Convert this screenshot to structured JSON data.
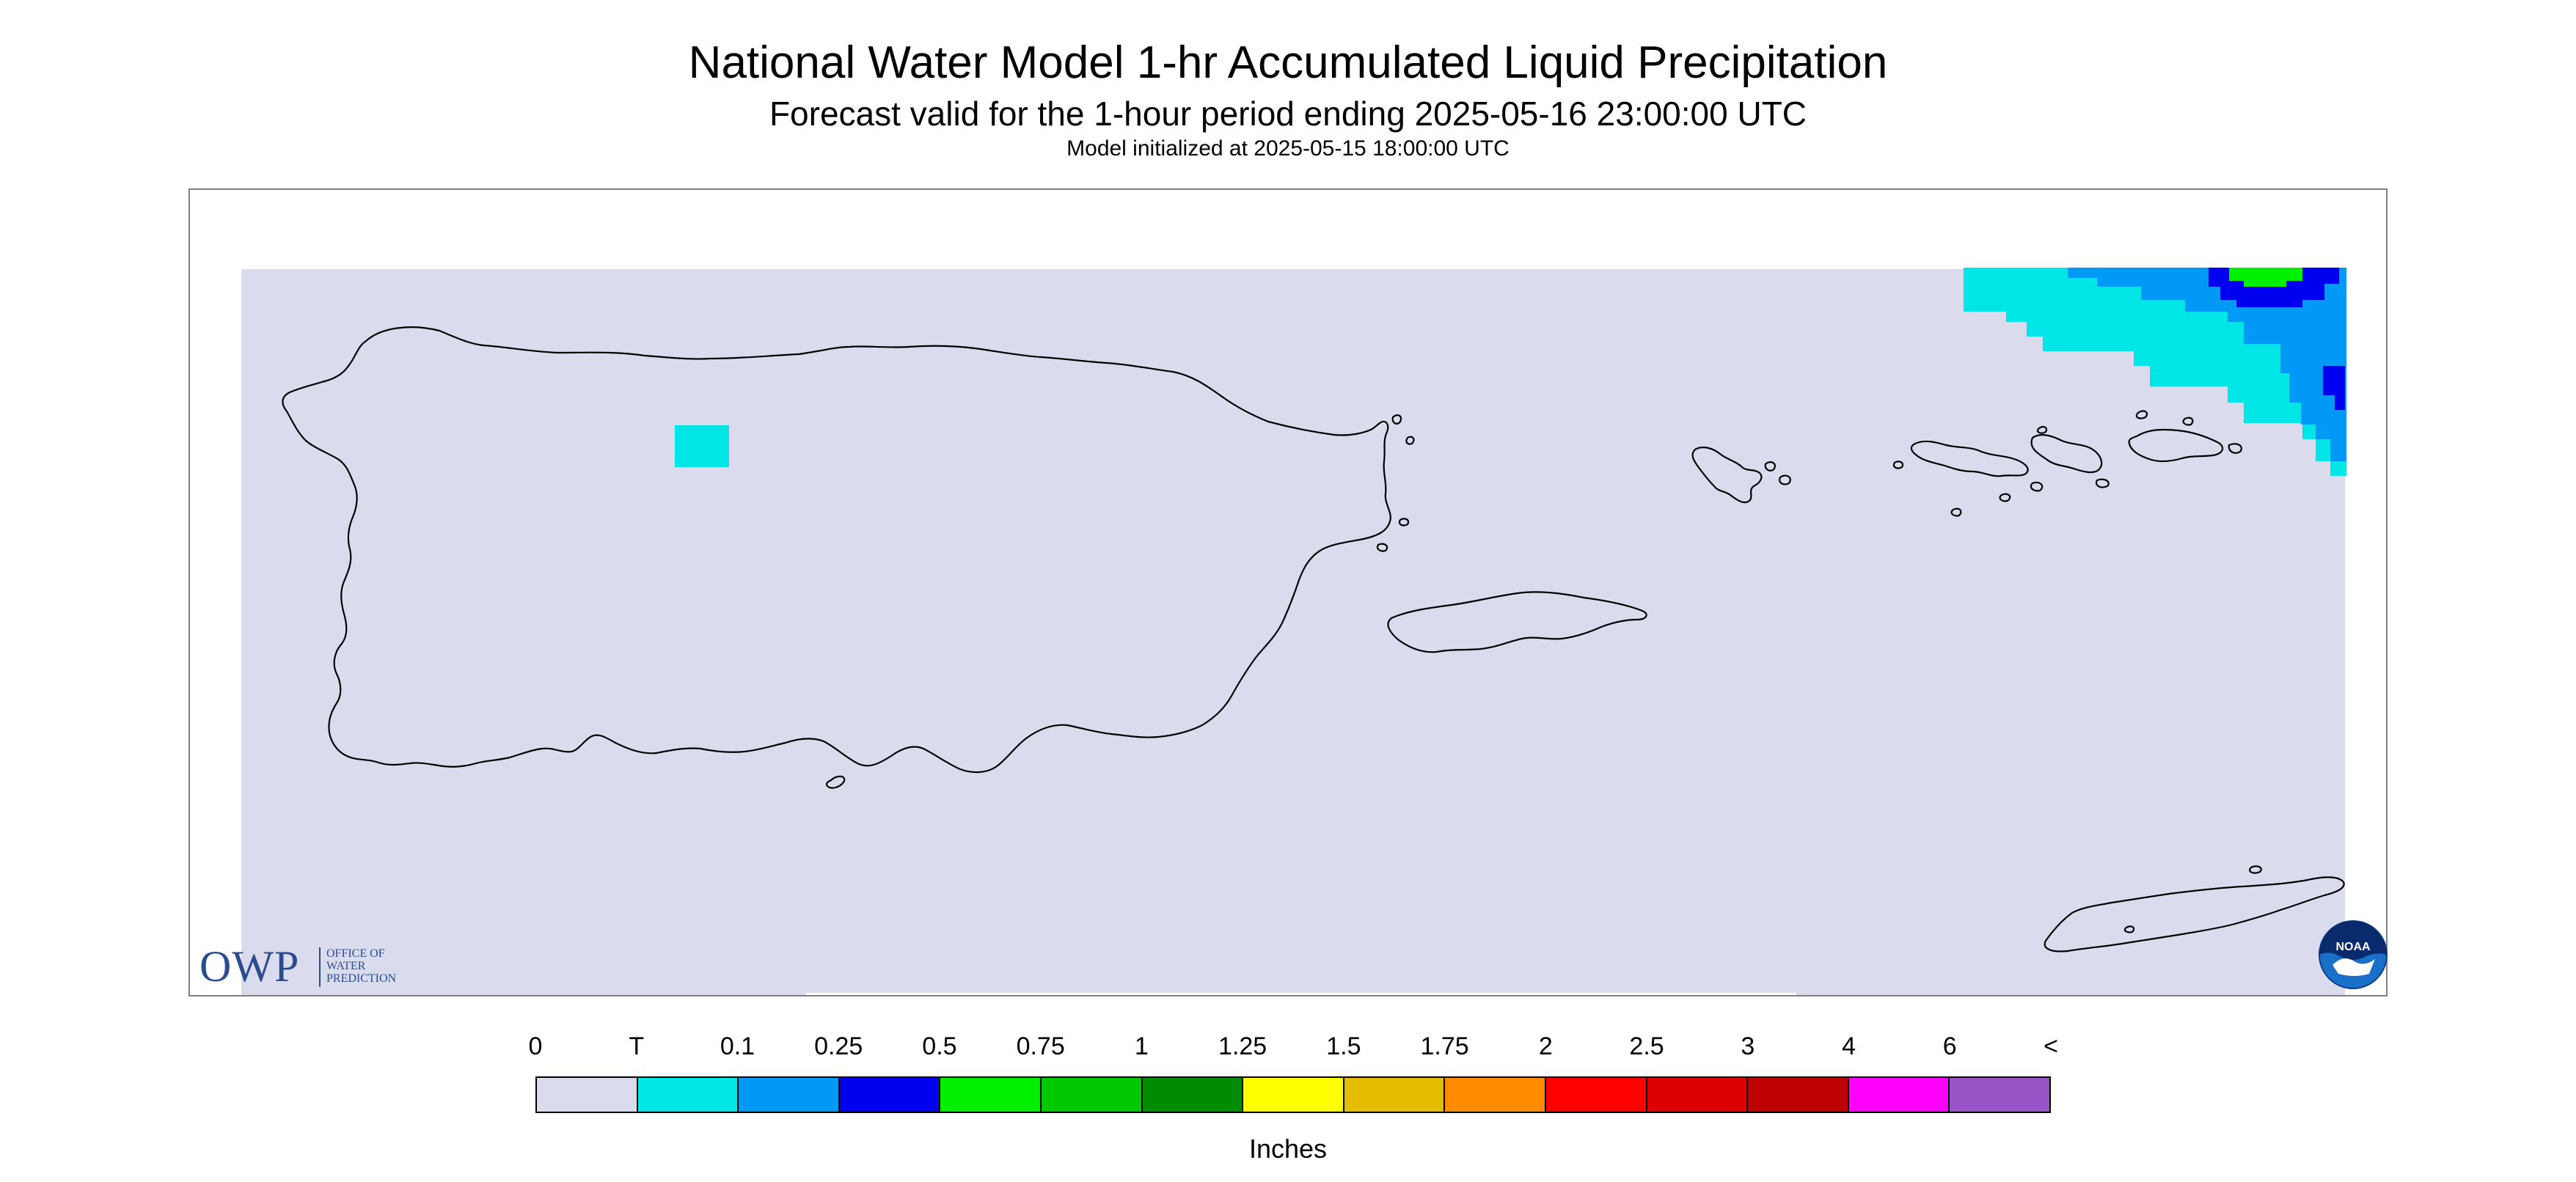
{
  "title": "National Water Model 1-hr Accumulated Liquid Precipitation",
  "subtitle": "Forecast valid for the 1-hour period ending 2025-05-16 23:00:00 UTC",
  "init_line": "Model initialized at 2025-05-15 18:00:00 UTC",
  "legend": {
    "labels": [
      "0",
      "T",
      "0.1",
      "0.25",
      "0.5",
      "0.75",
      "1",
      "1.25",
      "1.5",
      "1.75",
      "2",
      "2.5",
      "3",
      "4",
      "6",
      "<"
    ],
    "colors": [
      "#dadcee",
      "#00e6e6",
      "#0099f5",
      "#0000f0",
      "#00f000",
      "#00c800",
      "#008c00",
      "#ffff00",
      "#e6be00",
      "#ff8c00",
      "#ff0000",
      "#dc0000",
      "#be0000",
      "#ff00ff",
      "#9955c8"
    ],
    "units": "Inches"
  },
  "logos": {
    "owp_mark": "OWP",
    "owp_text": "OFFICE OF\nWATER\nPREDICTION",
    "noaa_text": "NOAA"
  },
  "map": {
    "background_color": "#dadcee",
    "coastline_color": "#000000",
    "icons": [
      "owp-logo",
      "noaa-logo"
    ]
  }
}
